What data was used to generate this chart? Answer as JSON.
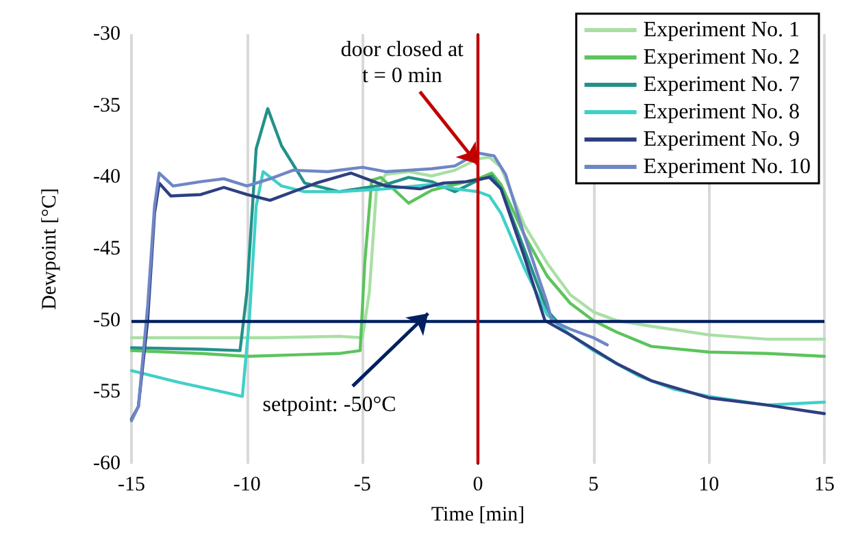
{
  "chart_data": {
    "type": "line",
    "xlabel": "Time [min]",
    "ylabel": "Dewpoint [°C]",
    "xlim": [
      -15,
      15
    ],
    "xticks": [
      -15,
      -10,
      -5,
      0,
      5,
      10,
      15
    ],
    "ylim": [
      -60,
      -30
    ],
    "yticks": [
      -60,
      -55,
      -50,
      -45,
      -40,
      -35,
      -30
    ],
    "grid": "x",
    "legend": "top right",
    "marker": "none",
    "line_style": "solid",
    "series": [
      {
        "name": "Experiment No. 1",
        "color": "#a9dfa5",
        "x": [
          -15,
          -12,
          -9,
          -6,
          -5,
          -4.7,
          -4.4,
          -4,
          -3,
          -2,
          -1,
          0,
          0.5,
          1,
          2,
          3,
          4,
          5,
          6,
          7.5,
          10,
          12.5,
          15
        ],
        "values": [
          -51.2,
          -51.2,
          -51.2,
          -51.1,
          -51.2,
          -48,
          -41,
          -39.8,
          -39.6,
          -39.9,
          -39.5,
          -38.7,
          -38.6,
          -39.3,
          -43.3,
          -46,
          -48.2,
          -49.4,
          -50,
          -50.4,
          -51,
          -51.3,
          -51.3
        ]
      },
      {
        "name": "Experiment No. 2",
        "color": "#5cc45c",
        "x": [
          -15,
          -12,
          -10,
          -8,
          -6,
          -5.1,
          -4.9,
          -4.6,
          -4.2,
          -3,
          -2,
          -1,
          0,
          0.6,
          1,
          2,
          3,
          4,
          5,
          6,
          7.5,
          10,
          12.5,
          15
        ],
        "values": [
          -52.1,
          -52.3,
          -52.5,
          -52.4,
          -52.3,
          -52.1,
          -46,
          -40.2,
          -40,
          -41.8,
          -40.9,
          -40.5,
          -40.1,
          -39.7,
          -40.5,
          -44,
          -46.9,
          -48.8,
          -50,
          -50.8,
          -51.8,
          -52.2,
          -52.3,
          -52.5
        ]
      },
      {
        "name": "Experiment No. 7",
        "color": "#23918a",
        "x": [
          -15,
          -12,
          -10.3,
          -10,
          -9.6,
          -9.1,
          -8.5,
          -7.5,
          -6,
          -4,
          -3,
          -2,
          -1,
          0,
          0.6,
          1,
          2,
          3,
          3.5
        ],
        "values": [
          -51.9,
          -52,
          -52.1,
          -48,
          -38,
          -35.2,
          -37.8,
          -40.4,
          -41,
          -40.5,
          -40,
          -40.3,
          -41,
          -40.2,
          -39.9,
          -40.8,
          -45,
          -49.3,
          -50.2
        ]
      },
      {
        "name": "Experiment No. 8",
        "color": "#40d0c8",
        "x": [
          -15,
          -13,
          -11,
          -10.2,
          -9.9,
          -9.6,
          -9.3,
          -8.5,
          -7.5,
          -6,
          -4,
          -2,
          -1,
          0,
          0.5,
          1,
          2,
          3,
          4,
          5,
          6,
          7,
          8.5,
          10,
          12.5,
          15
        ],
        "values": [
          -53.5,
          -54.3,
          -55,
          -55.3,
          -50,
          -42,
          -39.6,
          -40.6,
          -41,
          -41,
          -40.8,
          -40.5,
          -40.8,
          -41,
          -41.3,
          -42.5,
          -46.3,
          -49.6,
          -51,
          -52.1,
          -53,
          -53.9,
          -54.8,
          -55.3,
          -55.9,
          -55.7
        ]
      },
      {
        "name": "Experiment No. 9",
        "color": "#2e3f80",
        "x": [
          -15,
          -14.7,
          -14.3,
          -14,
          -13.8,
          -13.3,
          -12,
          -11,
          -10,
          -9,
          -8,
          -7,
          -5.5,
          -4,
          -2.5,
          -1.5,
          -0.5,
          0.5,
          1,
          2,
          2.9,
          4,
          5,
          6,
          7.5,
          10,
          12.5,
          15
        ],
        "values": [
          -56.9,
          -56,
          -50,
          -42.5,
          -40.4,
          -41.3,
          -41.2,
          -40.7,
          -41.2,
          -41.6,
          -41,
          -40.4,
          -39.7,
          -40.6,
          -40.8,
          -40.4,
          -40.3,
          -40,
          -40.8,
          -45.5,
          -50,
          -51,
          -52,
          -53,
          -54.2,
          -55.4,
          -55.9,
          -56.5
        ]
      },
      {
        "name": "Experiment No. 10",
        "color": "#6f86c6",
        "x": [
          -15,
          -14.7,
          -14.3,
          -14,
          -13.8,
          -13.2,
          -12,
          -11,
          -10,
          -9,
          -8,
          -6.5,
          -5,
          -4,
          -3,
          -2,
          -1,
          0,
          0.7,
          1.2,
          2,
          3,
          3.2,
          4,
          5,
          5.6
        ],
        "values": [
          -57,
          -56,
          -49,
          -42,
          -39.7,
          -40.6,
          -40.3,
          -40.1,
          -40.6,
          -40.1,
          -39.5,
          -39.6,
          -39.3,
          -39.6,
          -39.5,
          -39.4,
          -39.2,
          -38.3,
          -38.5,
          -39.8,
          -44,
          -48.8,
          -50,
          -50.6,
          -51.2,
          -51.7
        ]
      }
    ],
    "ref_lines": [
      {
        "axis": "y",
        "value": -50,
        "color": "#002060"
      },
      {
        "axis": "x",
        "value": 0,
        "color": "#c00000"
      }
    ],
    "annotations": [
      {
        "text": "door closed at\nt = 0 min",
        "x": -0.2,
        "y": -38.6
      },
      {
        "text": "setpoint: -50°C",
        "x": -2.4,
        "y": -50
      }
    ]
  }
}
